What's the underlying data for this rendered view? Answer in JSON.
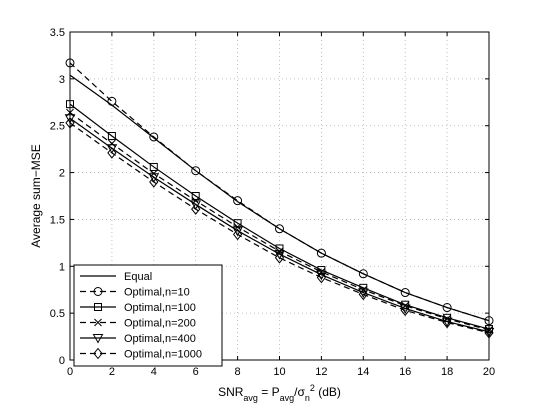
{
  "chart_data": {
    "type": "line",
    "title": "",
    "xlabel": "SNR",
    "xlabel_sub1": "avg",
    "xlabel_mid1": " = P",
    "xlabel_sub2": "avg",
    "xlabel_mid2": "/σ",
    "xlabel_sub3": "n",
    "xlabel_sup": "2",
    "xlabel_end": " (dB)",
    "ylabel": "Average sum−MSE",
    "xlim": [
      0,
      20
    ],
    "ylim": [
      0,
      3.5
    ],
    "xticks": [
      "0",
      "2",
      "4",
      "6",
      "8",
      "10",
      "12",
      "14",
      "16",
      "18",
      "20"
    ],
    "yticks": [
      "0",
      "0.5",
      "1",
      "1.5",
      "2",
      "2.5",
      "3",
      "3.5"
    ],
    "grid": true,
    "legend_position": "bottom-left",
    "x": [
      0,
      2,
      4,
      6,
      8,
      10,
      12,
      14,
      16,
      18,
      20
    ],
    "series": [
      {
        "name": "Equal",
        "marker": "none",
        "dash": "solid",
        "values": [
          3.04,
          2.72,
          2.37,
          2.02,
          1.69,
          1.4,
          1.14,
          0.92,
          0.72,
          0.56,
          0.42
        ]
      },
      {
        "name": "Optimal,n=10",
        "marker": "circle",
        "dash": "dashed",
        "values": [
          3.17,
          2.76,
          2.38,
          2.02,
          1.7,
          1.4,
          1.14,
          0.92,
          0.72,
          0.56,
          0.42
        ]
      },
      {
        "name": "Optimal,n=100",
        "marker": "square",
        "dash": "solid",
        "values": [
          2.73,
          2.39,
          2.06,
          1.75,
          1.46,
          1.19,
          0.96,
          0.77,
          0.59,
          0.45,
          0.33
        ]
      },
      {
        "name": "Optimal,n=200",
        "marker": "x",
        "dash": "dashed",
        "values": [
          2.64,
          2.31,
          1.99,
          1.7,
          1.42,
          1.16,
          0.94,
          0.75,
          0.58,
          0.44,
          0.32
        ]
      },
      {
        "name": "Optimal,n=400",
        "marker": "triangle-down",
        "dash": "solid",
        "values": [
          2.58,
          2.26,
          1.95,
          1.66,
          1.38,
          1.13,
          0.91,
          0.72,
          0.55,
          0.41,
          0.3
        ]
      },
      {
        "name": "Optimal,n=1000",
        "marker": "diamond",
        "dash": "dashed",
        "values": [
          2.53,
          2.21,
          1.9,
          1.61,
          1.34,
          1.09,
          0.88,
          0.7,
          0.53,
          0.4,
          0.29
        ]
      }
    ]
  }
}
